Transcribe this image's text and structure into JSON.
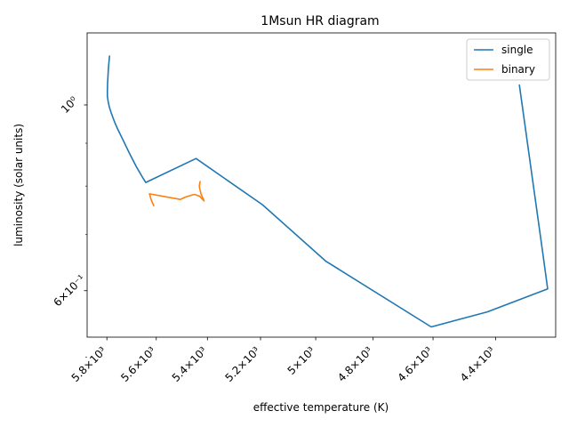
{
  "chart_data": {
    "type": "line",
    "title": "1Msun HR diagram",
    "xlabel": "effective temperature (K)",
    "ylabel": "luminosity (solar units)",
    "x_scale": "log",
    "y_scale": "log",
    "x_inverted": true,
    "xlim": [
      5882,
      4216
    ],
    "ylim": [
      0.528,
      1.219
    ],
    "legend_position": "top-right",
    "x_ticks": [
      {
        "value": 5800,
        "label": "5.8×10³"
      },
      {
        "value": 5600,
        "label": "5.6×10³"
      },
      {
        "value": 5400,
        "label": "5.4×10³"
      },
      {
        "value": 5200,
        "label": "5.2×10³"
      },
      {
        "value": 5000,
        "label": "5×10³"
      },
      {
        "value": 4800,
        "label": "4.8×10³"
      },
      {
        "value": 4600,
        "label": "4.6×10³"
      },
      {
        "value": 4400,
        "label": "4.4×10³"
      }
    ],
    "y_ticks": [
      {
        "value": 1.0,
        "label": "10⁰"
      },
      {
        "value": 0.6,
        "label": "6×10⁻¹"
      }
    ],
    "y_minor_ticks": [
      0.9,
      0.8,
      0.7,
      0.5
    ],
    "series": [
      {
        "name": "single",
        "color": "#1f77b4",
        "points": [
          [
            5789,
            1.144
          ],
          [
            5794,
            1.105
          ],
          [
            5797,
            1.06
          ],
          [
            5798,
            1.04
          ],
          [
            5798,
            1.025
          ],
          [
            5795,
            1.01
          ],
          [
            5790,
            0.995
          ],
          [
            5782,
            0.978
          ],
          [
            5770,
            0.957
          ],
          [
            5755,
            0.935
          ],
          [
            5733,
            0.907
          ],
          [
            5708,
            0.876
          ],
          [
            5680,
            0.844
          ],
          [
            5653,
            0.818
          ],
          [
            5642,
            0.808
          ],
          [
            5444,
            0.863
          ],
          [
            5193,
            0.76
          ],
          [
            4965,
            0.651
          ],
          [
            4606,
            0.543
          ],
          [
            4426,
            0.566
          ],
          [
            4240,
            0.603
          ],
          [
            4254,
            0.662
          ],
          [
            4326,
            1.056
          ]
        ]
      },
      {
        "name": "binary",
        "color": "#ff7f0e",
        "points": [
          [
            5610,
            0.758
          ],
          [
            5612,
            0.76
          ],
          [
            5615,
            0.764
          ],
          [
            5620,
            0.77
          ],
          [
            5627,
            0.783
          ],
          [
            5505,
            0.771
          ],
          [
            5486,
            0.776
          ],
          [
            5468,
            0.779
          ],
          [
            5450,
            0.782
          ],
          [
            5430,
            0.778
          ],
          [
            5413,
            0.768
          ],
          [
            5420,
            0.777
          ],
          [
            5425,
            0.783
          ],
          [
            5427,
            0.789
          ],
          [
            5430,
            0.795
          ],
          [
            5431,
            0.801
          ],
          [
            5428,
            0.81
          ]
        ]
      }
    ]
  }
}
